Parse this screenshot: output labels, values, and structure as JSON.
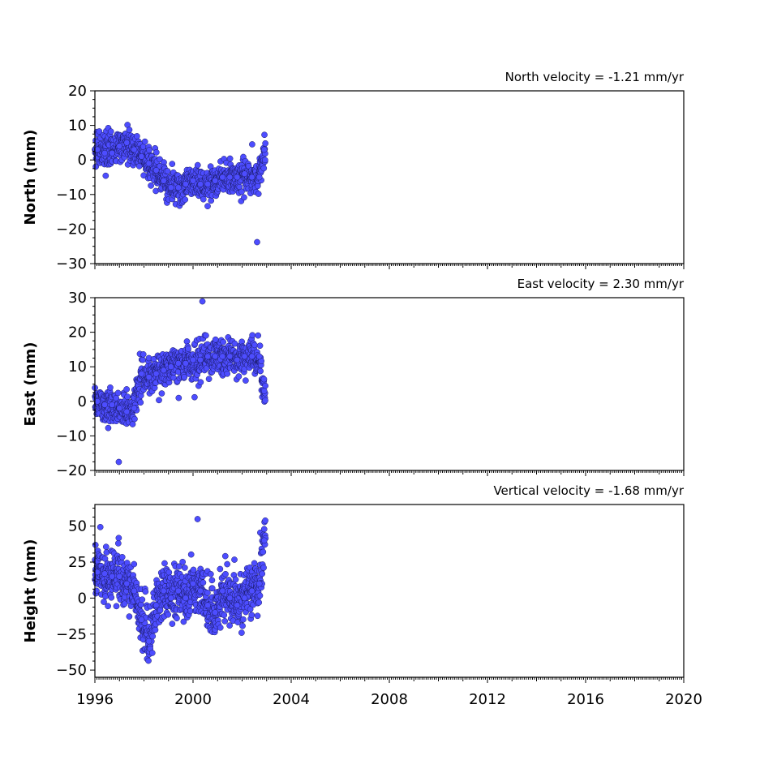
{
  "colors": {
    "marker_fill": "#4d4dff",
    "marker_edge": "#1a1a66",
    "axis": "#000000"
  },
  "chart_data": [
    {
      "type": "scatter",
      "ylabel": "North (mm)",
      "annotation": "North velocity = -1.21 mm/yr",
      "xlim": [
        1996,
        2020
      ],
      "ylim": [
        -30,
        20
      ],
      "xticks": [
        1996,
        2000,
        2004,
        2008,
        2012,
        2016,
        2020
      ],
      "yticks": [
        -30,
        -20,
        -10,
        0,
        10,
        20
      ],
      "x": [
        1996.1,
        1996.4,
        1996.7,
        1997.0,
        1997.3,
        1997.6,
        1997.9,
        1998.2,
        1998.5,
        1998.8,
        1999.1,
        1999.4,
        1999.7,
        2000.0,
        2000.3,
        2000.6,
        2000.9,
        2001.2,
        2001.5,
        2001.8,
        2002.1,
        2002.4,
        2002.7,
        2002.9
      ],
      "values": [
        3,
        2,
        2,
        4,
        5,
        3,
        1,
        -1,
        -3,
        -6,
        -8,
        -8,
        -7,
        -6,
        -7,
        -7,
        -6,
        -5,
        -5,
        -5,
        -4,
        -5,
        -5,
        3
      ]
    },
    {
      "type": "scatter",
      "ylabel": "East (mm)",
      "annotation": "East velocity = 2.30 mm/yr",
      "xlim": [
        1996,
        2020
      ],
      "ylim": [
        -20,
        30
      ],
      "xticks": [
        1996,
        2000,
        2004,
        2008,
        2012,
        2016,
        2020
      ],
      "yticks": [
        -20,
        -10,
        0,
        10,
        20,
        30
      ],
      "x": [
        1996.1,
        1996.4,
        1996.7,
        1997.0,
        1997.3,
        1997.6,
        1997.9,
        1998.2,
        1998.5,
        1998.8,
        1999.1,
        1999.4,
        1999.7,
        2000.0,
        2000.3,
        2000.6,
        2000.9,
        2001.2,
        2001.5,
        2001.8,
        2002.1,
        2002.4,
        2002.7,
        2002.9
      ],
      "values": [
        0,
        -1,
        -1,
        -2,
        -3,
        -2,
        8,
        7,
        8,
        9,
        10,
        11,
        11,
        12,
        12,
        13,
        13,
        13,
        13,
        12,
        13,
        13,
        13,
        3
      ]
    },
    {
      "type": "scatter",
      "ylabel": "Height (mm)",
      "annotation": "Vertical velocity = -1.68 mm/yr",
      "xlim": [
        1996,
        2020
      ],
      "ylim": [
        -55,
        65
      ],
      "xticks": [
        1996,
        2000,
        2004,
        2008,
        2012,
        2016,
        2020
      ],
      "yticks": [
        -50,
        -25,
        0,
        25,
        50
      ],
      "x": [
        1996.1,
        1996.4,
        1996.7,
        1997.0,
        1997.3,
        1997.6,
        1997.9,
        1998.2,
        1998.5,
        1998.8,
        1999.1,
        1999.4,
        1999.7,
        2000.0,
        2000.3,
        2000.6,
        2000.9,
        2001.2,
        2001.5,
        2001.8,
        2002.1,
        2002.4,
        2002.7,
        2002.9
      ],
      "values": [
        18,
        17,
        15,
        15,
        10,
        5,
        -15,
        -30,
        -5,
        5,
        0,
        5,
        0,
        10,
        5,
        -5,
        -10,
        5,
        0,
        -5,
        0,
        5,
        10,
        40
      ]
    }
  ]
}
